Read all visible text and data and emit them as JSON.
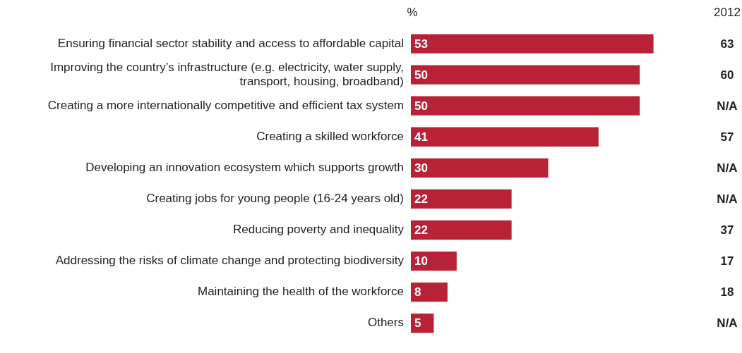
{
  "chart_data": {
    "type": "bar",
    "orientation": "horizontal",
    "xlabel": "%",
    "categories": [
      "Ensuring financial sector stability and access to affordable capital",
      "Improving the country’s infrastructure (e.g. electricity, water supply, transport, housing, broadband)",
      "Creating a more internationally competitive and efficient tax system",
      "Creating a skilled workforce",
      "Developing an innovation ecosystem which supports growth",
      "Creating jobs for young people (16-24 years old)",
      "Reducing poverty and inequality",
      "Addressing the risks of climate change and protecting biodiversity",
      "Maintaining the health of the workforce",
      "Others"
    ],
    "values": [
      53,
      50,
      50,
      41,
      30,
      22,
      22,
      10,
      8,
      5
    ],
    "color": "#b82237",
    "data_labels": true,
    "legend": false,
    "grid": false,
    "tick_labels": "y",
    "annotations": [
      "2012",
      "63",
      "60",
      "N/A",
      "57",
      "N/A",
      "N/A",
      "37",
      "17",
      "18",
      "N/A"
    ]
  }
}
